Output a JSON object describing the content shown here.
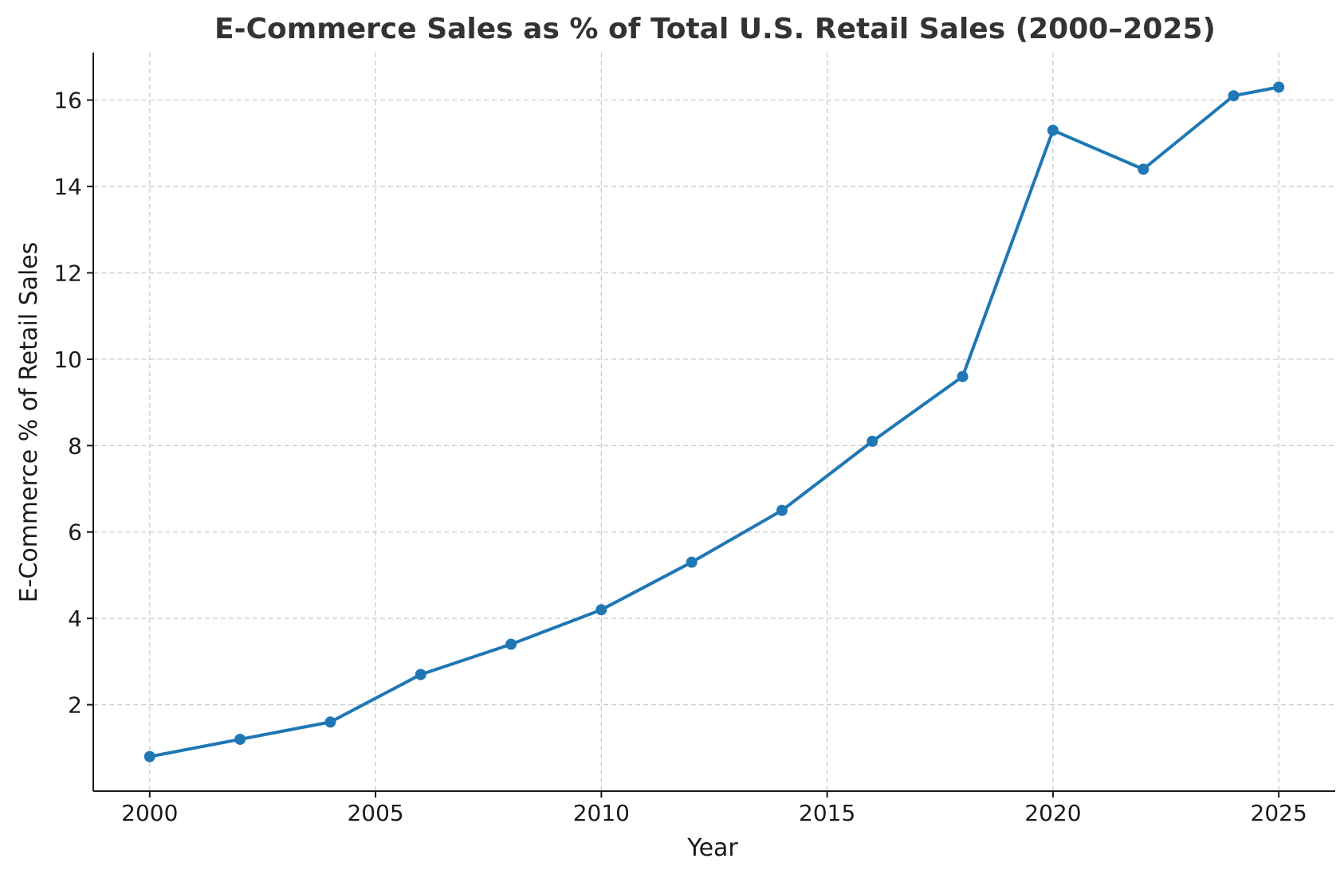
{
  "chart_data": {
    "type": "line",
    "title": "E-Commerce Sales as % of Total U.S. Retail Sales (2000–2025)",
    "xlabel": "Year",
    "ylabel": "E-Commerce % of Retail Sales",
    "xlim": [
      1998.75,
      2026.25
    ],
    "ylim": [
      0.0,
      17.1
    ],
    "xticks": [
      2000,
      2005,
      2010,
      2015,
      2020,
      2025
    ],
    "yticks": [
      2,
      4,
      6,
      8,
      10,
      12,
      14,
      16
    ],
    "grid": true,
    "color": "#1f77b4",
    "series": [
      {
        "x": [
          2000,
          2002,
          2004,
          2006,
          2008,
          2010,
          2012,
          2014,
          2016,
          2018,
          2020,
          2022,
          2024,
          2025
        ],
        "y": [
          0.8,
          1.2,
          1.6,
          2.7,
          3.4,
          4.2,
          5.3,
          6.5,
          8.1,
          9.6,
          15.3,
          14.4,
          16.1,
          16.3
        ]
      }
    ]
  }
}
